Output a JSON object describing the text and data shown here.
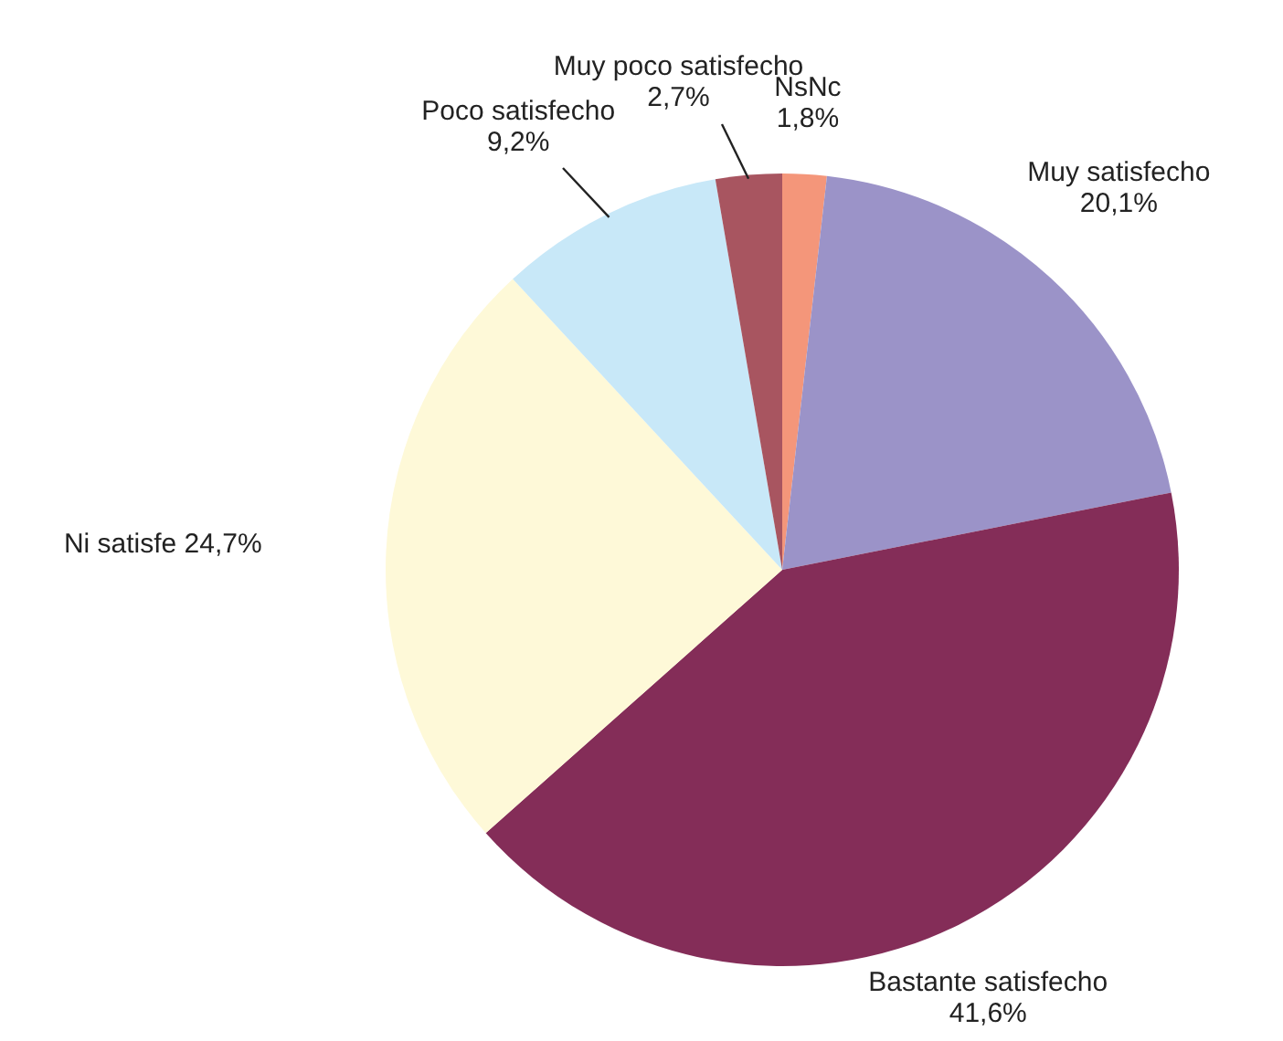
{
  "chart_data": {
    "type": "pie",
    "categories": [
      "NsNc",
      "Muy satisfecho",
      "Bastante satisfecho",
      "Ni satisfe",
      "Poco satisfecho",
      "Muy poco satisfecho"
    ],
    "values": [
      1.8,
      20.1,
      41.6,
      24.7,
      9.2,
      2.7
    ],
    "colors": [
      "#f4967a",
      "#9b93c8",
      "#842d58",
      "#fef9d8",
      "#c8e8f8",
      "#a85560"
    ],
    "value_labels": [
      "1,8%",
      "20,1%",
      "41,6%",
      "24,7%",
      "9,2%",
      "2,7%"
    ],
    "legend": false
  }
}
